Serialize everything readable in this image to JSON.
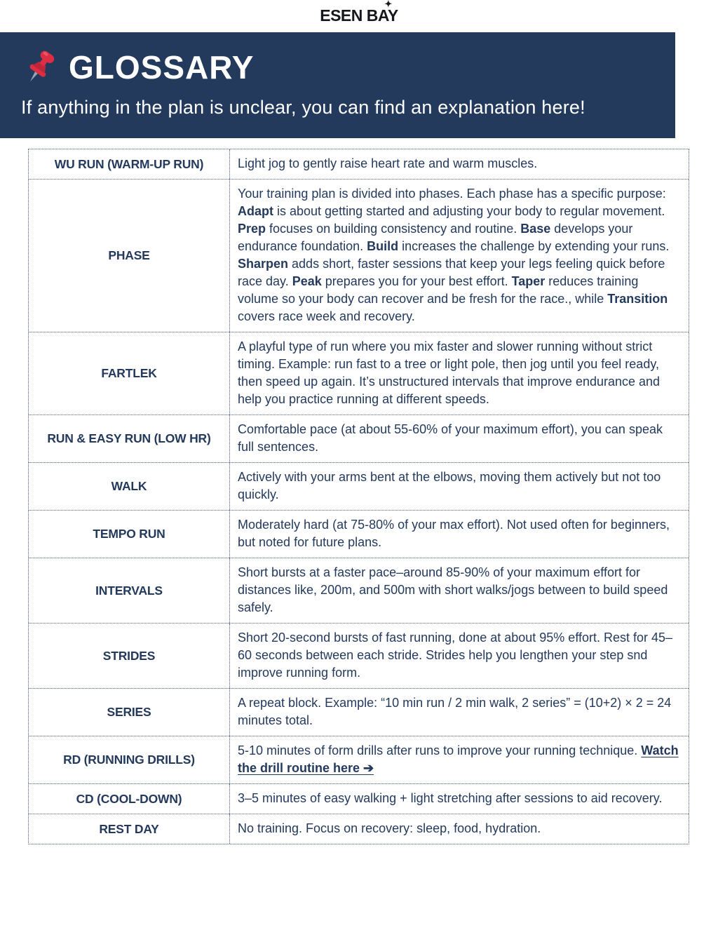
{
  "logo": {
    "text": "ESEN BAY",
    "sparkle": "✦"
  },
  "header": {
    "title": "GLOSSARY",
    "subtitle": "If anything in the plan is unclear, you can find an explanation here!",
    "bg_color": "#233a5c",
    "pin_icon": "red-pushpin"
  },
  "colors": {
    "banner_bg": "#233a5c",
    "text_navy": "#243a5d",
    "border_dotted": "#45597d",
    "pin_red": "#dd2e44",
    "pin_red_dark": "#c0263a",
    "pin_needle": "#98a2ad"
  },
  "glossary": {
    "rows": [
      {
        "term": "WU RUN (WARM-UP RUN)",
        "definition": [
          {
            "t": "Light jog to gently raise heart rate and warm muscles."
          }
        ]
      },
      {
        "term": "PHASE",
        "definition": [
          {
            "t": "Your training plan is divided into phases. Each phase has a specific purpose: "
          },
          {
            "t": "Adapt",
            "b": true
          },
          {
            "t": " is about getting started and adjusting your body to regular movement. "
          },
          {
            "t": "Prep",
            "b": true
          },
          {
            "t": " focuses on building consistency and routine. "
          },
          {
            "t": "Base",
            "b": true
          },
          {
            "t": " develops your endurance foundation. "
          },
          {
            "t": "Build",
            "b": true
          },
          {
            "t": " increases the challenge by extending your runs. "
          },
          {
            "t": "Sharpen",
            "b": true
          },
          {
            "t": " adds short, faster sessions that keep your legs feeling quick before race day. "
          },
          {
            "t": "Peak",
            "b": true
          },
          {
            "t": " prepares you for your best effort. "
          },
          {
            "t": "Taper",
            "b": true
          },
          {
            "t": " reduces training volume so your body can recover and be fresh for the race., while "
          },
          {
            "t": "Transition",
            "b": true
          },
          {
            "t": " covers race week and recovery."
          }
        ]
      },
      {
        "term": "FARTLEK",
        "definition": [
          {
            "t": "A playful type of run where you mix faster and slower running without strict timing. Example: run fast to a tree or light pole, then jog until you feel ready, then speed up again. It’s unstructured intervals that improve endurance and help you practice running at different speeds."
          }
        ]
      },
      {
        "term": "RUN & EASY RUN (LOW HR)",
        "definition": [
          {
            "t": "Comfortable pace (at about 55-60% of your maximum effort), you can speak full sentences."
          }
        ]
      },
      {
        "term": "WALK",
        "definition": [
          {
            "t": "Actively with your arms bent at the elbows, moving them actively but not too quickly."
          }
        ]
      },
      {
        "term": "TEMPO RUN",
        "definition": [
          {
            "t": "Moderately hard (at 75-80% of your max effort). Not used often for beginners, but noted for future plans."
          }
        ]
      },
      {
        "term": "INTERVALS",
        "definition": [
          {
            "t": "Short bursts at a faster pace–around 85-90% of your maximum effort for distances like, 200m, and 500m with short walks/jogs between to build speed safely."
          }
        ]
      },
      {
        "term": "STRIDES",
        "definition": [
          {
            "t": "Short 20-second bursts of fast running, done at about 95% effort. Rest for 45–60 seconds between each stride. Strides help you lengthen your step snd improve running form."
          }
        ]
      },
      {
        "term": "SERIES",
        "definition": [
          {
            "t": "A repeat block. Example: “10 min run / 2 min walk, 2 series” = (10+2) × 2 = 24 minutes total."
          }
        ]
      },
      {
        "term": "RD (RUNNING DRILLS)",
        "definition": [
          {
            "t": "5-10 minutes of form drills after runs to improve your running technique. "
          },
          {
            "t": "Watch the drill routine here ➔",
            "link": true
          }
        ]
      },
      {
        "term": "CD (COOL-DOWN)",
        "definition": [
          {
            "t": "3–5 minutes of easy walking + light stretching after sessions to aid recovery."
          }
        ]
      },
      {
        "term": "REST DAY",
        "definition": [
          {
            "t": "No training. Focus on recovery: sleep, food, hydration."
          }
        ]
      }
    ]
  }
}
